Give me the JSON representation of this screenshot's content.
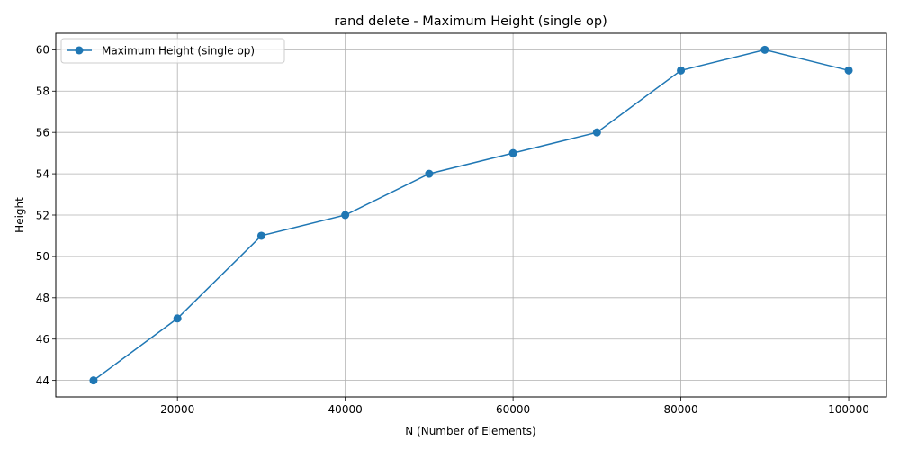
{
  "chart_data": {
    "type": "line",
    "title": "rand delete - Maximum Height (single op)",
    "xlabel": "N (Number of Elements)",
    "ylabel": "Height",
    "x": [
      10000,
      20000,
      30000,
      40000,
      50000,
      60000,
      70000,
      80000,
      90000,
      100000
    ],
    "series": [
      {
        "name": "Maximum Height (single op)",
        "values": [
          44,
          47,
          51,
          52,
          54,
          55,
          56,
          59,
          60,
          59
        ],
        "color": "#1f77b4",
        "marker": "circle"
      }
    ],
    "xlim": [
      5500,
      104500
    ],
    "ylim": [
      43.2,
      60.8
    ],
    "xticks": [
      20000,
      40000,
      60000,
      80000,
      100000
    ],
    "yticks": [
      44,
      46,
      48,
      50,
      52,
      54,
      56,
      58,
      60
    ],
    "grid": true,
    "legend": "top-left"
  }
}
